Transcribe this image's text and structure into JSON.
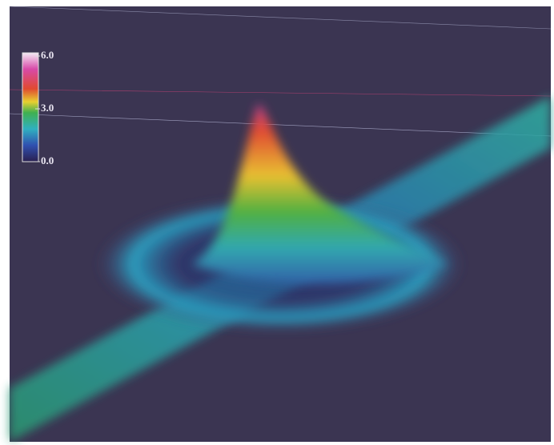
{
  "chart_data": {
    "type": "surface",
    "colorbar": {
      "lim": [
        0,
        6
      ],
      "ticks": [
        {
          "value": 6,
          "label": "6.0"
        },
        {
          "value": 3,
          "label": "3.0"
        },
        {
          "value": 0,
          "label": "0.0"
        }
      ]
    }
  }
}
